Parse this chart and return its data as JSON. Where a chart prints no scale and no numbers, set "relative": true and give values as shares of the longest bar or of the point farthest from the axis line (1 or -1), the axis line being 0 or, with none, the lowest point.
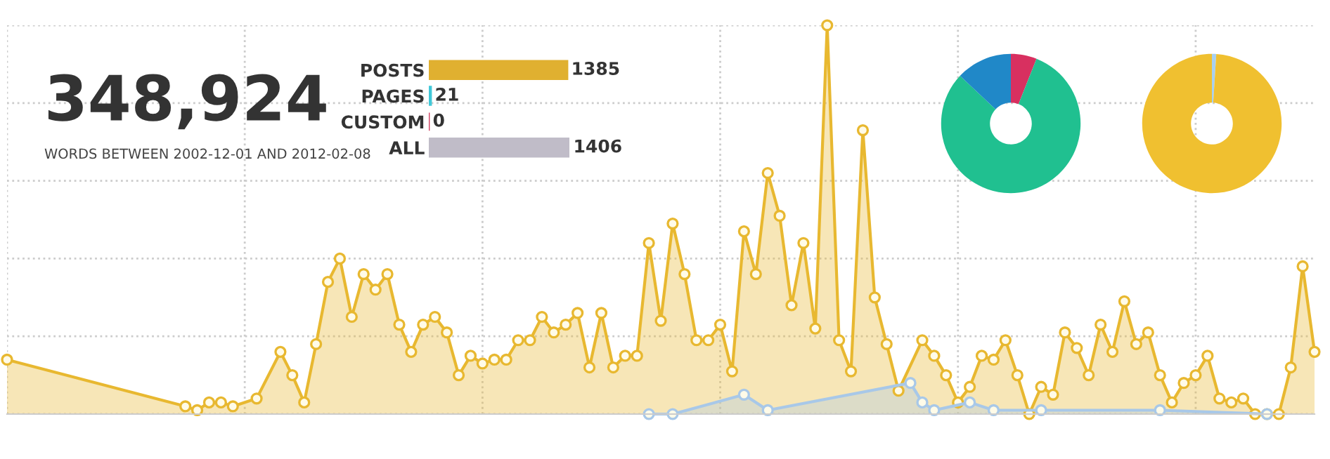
{
  "chart_data": [
    {
      "type": "other",
      "title": "348,924",
      "subtitle": "WORDS BETWEEN 2002-12-01 AND 2012-02-08"
    },
    {
      "type": "bar",
      "orientation": "horizontal",
      "categories": [
        "POSTS",
        "PAGES",
        "CUSTOM",
        "ALL"
      ],
      "values": [
        1385,
        21,
        0,
        1406
      ],
      "colors": [
        "#e0b030",
        "#40c8d8",
        "#d04060",
        "#c0bcc8"
      ],
      "data_labels": true,
      "tick_labels": "y"
    },
    {
      "type": "donut",
      "categories": [
        null,
        null,
        null
      ],
      "values": [
        6,
        81,
        13
      ],
      "colors": [
        "#d83060",
        "#20c090",
        "#2088c8"
      ]
    },
    {
      "type": "donut",
      "categories": [
        null,
        null
      ],
      "values": [
        1,
        99
      ],
      "colors": [
        "#a8d0f0",
        "#f0c030"
      ]
    },
    {
      "type": "area",
      "relative": true,
      "grid": true,
      "marker": "circle",
      "tick_labels": false,
      "categories": [
        null,
        null,
        null,
        null,
        null,
        null,
        null,
        null,
        null,
        null,
        null,
        null,
        null,
        null,
        null,
        null,
        null,
        null,
        null,
        null,
        null,
        null,
        null,
        null,
        null,
        null,
        null,
        null,
        null,
        null,
        null,
        null,
        null,
        null,
        null,
        null,
        null,
        null,
        null,
        null,
        null,
        null,
        null,
        null,
        null,
        null,
        null,
        null,
        null,
        null,
        null,
        null,
        null,
        null,
        null,
        null,
        null,
        null,
        null,
        null,
        null,
        null,
        null,
        null,
        null,
        null,
        null,
        null,
        null,
        null,
        null,
        null,
        null,
        null,
        null,
        null,
        null,
        null,
        null,
        null,
        null,
        null,
        null,
        null,
        null,
        null,
        null,
        null,
        null,
        null,
        null,
        null,
        null,
        null,
        null,
        null,
        null,
        null,
        null,
        null,
        null,
        null,
        null,
        null,
        null,
        null,
        null,
        null,
        null,
        null,
        null
      ],
      "series": [
        {
          "color": "#e8b830",
          "values": [
            0.14,
            null,
            null,
            null,
            null,
            null,
            null,
            null,
            null,
            null,
            null,
            null,
            null,
            null,
            null,
            0.02,
            0.01,
            0.03,
            0.03,
            0.02,
            null,
            0.04,
            null,
            0.16,
            0.1,
            0.03,
            0.18,
            0.34,
            0.4,
            0.25,
            0.36,
            0.32,
            0.36,
            0.23,
            0.16,
            0.23,
            0.25,
            0.21,
            0.1,
            0.15,
            0.13,
            0.14,
            0.14,
            0.19,
            0.19,
            0.25,
            0.21,
            0.23,
            0.26,
            0.12,
            0.26,
            0.12,
            0.15,
            0.15,
            0.44,
            0.24,
            0.49,
            0.36,
            0.19,
            0.19,
            0.23,
            0.11,
            0.47,
            0.36,
            0.62,
            0.51,
            0.28,
            0.44,
            0.22,
            1,
            0.19,
            0.11,
            0.73,
            0.3,
            0.18,
            0.06,
            null,
            0.19,
            0.15,
            0.1,
            0.03,
            0.07,
            0.15,
            0.14,
            0.19,
            0.1,
            0.0,
            0.07,
            0.05,
            0.21,
            0.17,
            0.1,
            0.23,
            0.16,
            0.29,
            0.18,
            0.21,
            0.1,
            0.03,
            0.08,
            0.1,
            0.15,
            0.04,
            0.03,
            0.04,
            0,
            0,
            0,
            0.12,
            0.38,
            0.16
          ]
        },
        {
          "color": "#a8c8e8",
          "values": [
            null,
            null,
            null,
            null,
            null,
            null,
            null,
            null,
            null,
            null,
            null,
            null,
            null,
            null,
            null,
            null,
            null,
            null,
            null,
            null,
            null,
            null,
            null,
            null,
            null,
            null,
            null,
            null,
            null,
            null,
            null,
            null,
            null,
            null,
            null,
            null,
            null,
            null,
            null,
            null,
            null,
            null,
            null,
            null,
            null,
            null,
            null,
            null,
            null,
            null,
            null,
            null,
            null,
            null,
            0,
            null,
            0,
            null,
            null,
            null,
            null,
            null,
            0.05,
            null,
            0.01,
            null,
            null,
            null,
            null,
            null,
            null,
            null,
            null,
            null,
            null,
            null,
            0.08,
            0.03,
            0.01,
            null,
            null,
            0.03,
            null,
            0.01,
            null,
            null,
            null,
            0.01,
            null,
            null,
            null,
            null,
            null,
            null,
            null,
            null,
            null,
            0.01,
            null,
            null,
            null,
            null,
            null,
            null,
            null,
            null,
            0,
            null,
            null,
            null,
            null
          ]
        }
      ]
    }
  ]
}
